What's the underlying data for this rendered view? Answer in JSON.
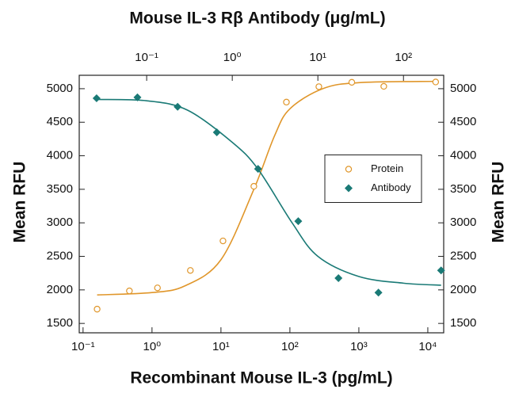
{
  "chart_data": {
    "type": "scatter",
    "title": "Mouse IL-3 Rβ Antibody (μg/mL)",
    "x_label": "Recombinant Mouse IL-3 (pg/mL)",
    "y_label": "Mean RFU",
    "y2_label": "Mean RFU",
    "xscale": "log",
    "x2scale": "log",
    "xlim": [
      0.088,
      17000
    ],
    "xticks": [
      {
        "value": 0.1,
        "label": "10⁻¹"
      },
      {
        "value": 1,
        "label": "10⁰"
      },
      {
        "value": 10,
        "label": "10¹"
      },
      {
        "value": 100,
        "label": "10²"
      },
      {
        "value": 1000,
        "label": "10³"
      },
      {
        "value": 10000,
        "label": "10⁴"
      }
    ],
    "x2lim": [
      0.0163,
      295
    ],
    "x2ticks": [
      {
        "value": 0.1,
        "label": "10⁻¹"
      },
      {
        "value": 1,
        "label": "10⁰"
      },
      {
        "value": 10,
        "label": "10¹"
      },
      {
        "value": 100,
        "label": "10²"
      }
    ],
    "ylim": [
      1360,
      5200
    ],
    "yticks": [
      1500,
      2000,
      2500,
      3000,
      3500,
      4000,
      4500,
      5000
    ],
    "y2lim": [
      1360,
      5200
    ],
    "y2ticks": [
      1500,
      2000,
      2500,
      3000,
      3500,
      4000,
      4500,
      5000
    ],
    "legend": "center right",
    "series": [
      {
        "name": "Protein",
        "color": "#e0962a",
        "marker": "circle",
        "xaxis": "x",
        "x": [
          0.16,
          0.47,
          1.2,
          3.6,
          10.7,
          30,
          89,
          263,
          790,
          2300,
          13000
        ],
        "values": [
          1713,
          1985,
          2030,
          2290,
          2730,
          3545,
          4800,
          5030,
          5095,
          5035,
          5100
        ],
        "fit": {
          "x": [
            0.16,
            1,
            3,
            10,
            30,
            60,
            100,
            300,
            1000,
            13000
          ],
          "values": [
            1925,
            1960,
            2060,
            2450,
            3500,
            4300,
            4700,
            5000,
            5090,
            5110
          ]
        }
      },
      {
        "name": "Antibody",
        "color": "#1a7a76",
        "marker": "diamond",
        "xaxis": "x2",
        "x": [
          0.026,
          0.078,
          0.23,
          0.66,
          2.0,
          5.9,
          17.4,
          51,
          275
        ],
        "values": [
          4858,
          4870,
          4730,
          4350,
          3805,
          3025,
          2175,
          1960,
          2290
        ],
        "fit": {
          "x": [
            0.026,
            0.1,
            0.3,
            1,
            2,
            5,
            10,
            30,
            100,
            275
          ],
          "values": [
            4840,
            4820,
            4680,
            4200,
            3800,
            3000,
            2500,
            2200,
            2100,
            2070
          ]
        }
      }
    ]
  }
}
